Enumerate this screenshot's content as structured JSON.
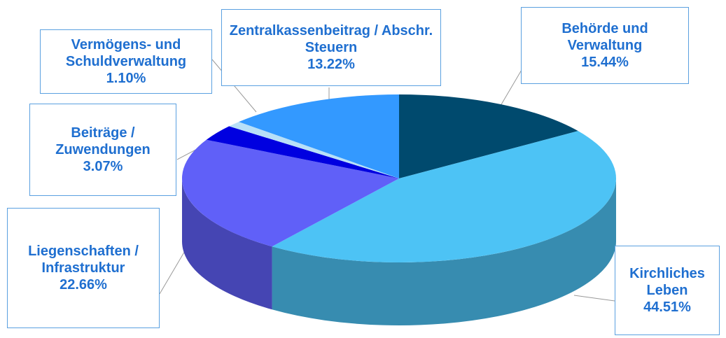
{
  "chart_data": {
    "type": "pie",
    "categories": [
      "Behörde und Verwaltung",
      "Kirchliches Leben",
      "Liegenschaften / Infrastruktur",
      "Beiträge / Zuwendungen",
      "Vermögens- und Schuldverwaltung",
      "Zentralkassenbeitrag / Abschr. Steuern"
    ],
    "values": [
      15.44,
      44.51,
      22.66,
      3.07,
      1.1,
      13.22
    ],
    "value_labels": [
      "15.44%",
      "44.51%",
      "22.66%",
      "3.07%",
      "1.10%",
      "13.22%"
    ],
    "colors": [
      "#004a6e",
      "#4dc3f5",
      "#6060f8",
      "#0000e0",
      "#b8e0f8",
      "#3399ff"
    ]
  }
}
